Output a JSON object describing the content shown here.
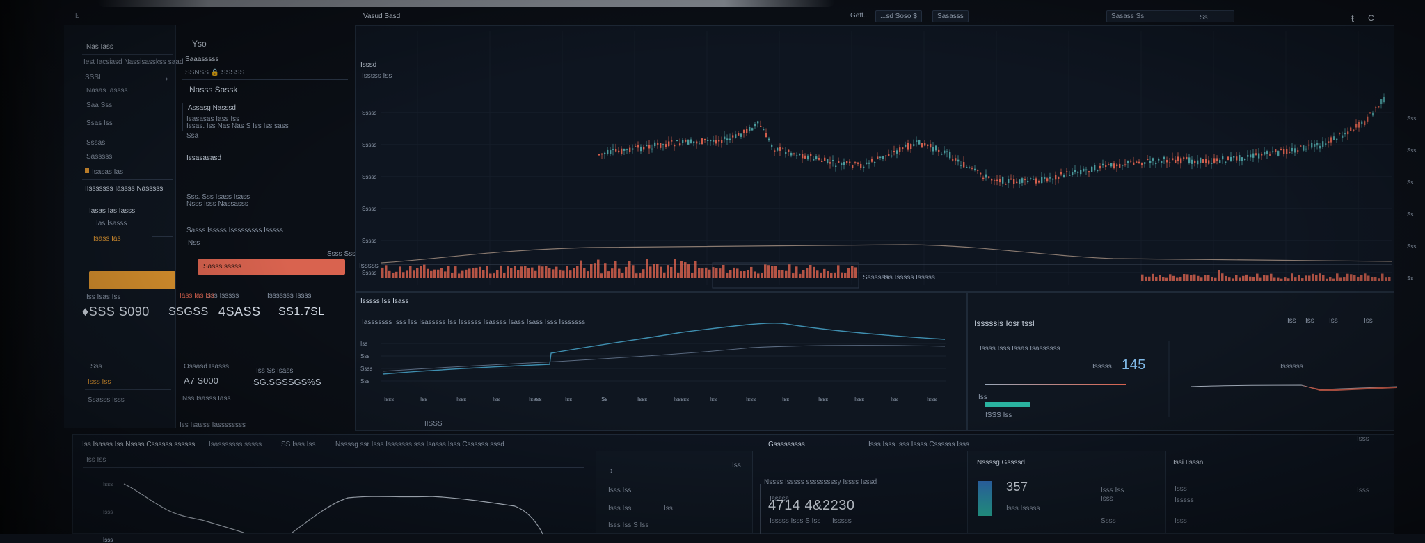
{
  "topbar": {
    "app_label": "Ŀ",
    "center_title": "Vasud Sasd",
    "menu_1": "Geff...",
    "menu_2": "...sd Soso $",
    "menu_3": "Sasasss",
    "right_field": "Sasass Ss",
    "right_count": "Ss",
    "right_icon_1": "ŧ",
    "right_icon_2": "C"
  },
  "left_nav": {
    "heading": "Nas Iass",
    "items": [
      "Iest Iacsiasd Nassisasskss saad",
      "SSSI",
      "Nasas Iassss",
      "Saa Sss",
      "Ssas Iss",
      "Sssas",
      "Sasssss",
      "Isasas Ias",
      "IIsssssss Iassss Nasssss"
    ],
    "sub_heading": "Iasas Ias Iasss",
    "sub_items": [
      "Ias Isasss",
      "Isass Ias"
    ]
  },
  "left_detail": {
    "label_top": "Yso",
    "section_1": "Saaasssss",
    "price_row": "SSNSS 🔒 SSSSS",
    "section_2": "Nasss Sassk",
    "section_3": "Assasg Nasssd",
    "desc_1": "Isasasas Iass Iss",
    "desc_2": "Issas. Iss Nas Nas S Iss Iss sass",
    "desc_3": "Ssa",
    "section_4": "Issasasasd",
    "desc_4": "Sss. Sss Isass Isass",
    "desc_5": "Nsss Isss Nassasss",
    "desc_6": "Sasss Isssss Isssssssss Isssss",
    "desc_7": "Nss",
    "sell_label": "Ssss Ssssss Sssss",
    "buy_button": "Sasss sssss",
    "buy_label": "Sss Isssss"
  },
  "stats_row": {
    "label_1": "Iss Isas Iss",
    "label_2": "Iass Ias Iss",
    "label_3": "Isssssss Issss",
    "value_1": "♦SSS S090",
    "value_2": "SSGSS",
    "value_3": "4SASS",
    "value_4": "SS1.7SL",
    "val_sub_1": "Sss",
    "val_sub_2": "Isss Iss",
    "val_sub_3": "Ssasss Isss",
    "val_sub_4": "Ossasd Isasss",
    "value_5": "A7 S000",
    "value_6": "SG.SGSSGS%S",
    "small_1": "Iss Ss Isass",
    "small_2": "Nss Isasss Iass",
    "footer_note": "Iss Isasss Iassssssss"
  },
  "main_chart": {
    "title": "Isssd",
    "subtitle": "Isssss Iss",
    "y_ticks": [
      "Sssss",
      "Sssss",
      "Sssss",
      "Sssss",
      "Sssss",
      "Sssss"
    ],
    "right_ticks": [
      "Sss",
      "Sss",
      "Ss",
      "Ss",
      "Sss",
      "Ss"
    ],
    "volume_label": "Isssss",
    "volume_value": "Sssssss",
    "volume_right": "Iss Isssss Isssss"
  },
  "lower_chart": {
    "title": "Isssss Iss Isass",
    "legend": "Iasssssss Isss Iss Isasssss Iss Issssss Isassss Isass Isass Isss Isssssss",
    "y_ticks": [
      "Iss",
      "Sss",
      "Ssss",
      "Sss"
    ],
    "x_ticks": [
      "Isss",
      "Iss",
      "Isss",
      "Iss",
      "Isass",
      "Iss",
      "Ss",
      "Isss",
      "Isssss",
      "Iss",
      "Isss",
      "Iss",
      "Isss",
      "Isss",
      "Iss",
      "Isss"
    ],
    "footer": "IISSS"
  },
  "right_panel": {
    "title": "Isssssis Iosr tssl",
    "subtitle": "Issss Isss Issas Isassssss",
    "metric_label": "Isssss",
    "metric_value": "145",
    "tick": "Iss",
    "bar_label": "ISSS Iss",
    "chart_title": "Issssss",
    "small_icons": [
      "Iss",
      "Iss",
      "Iss",
      "Iss"
    ]
  },
  "bottom_tabs": {
    "tab_1": "Iss Isasss Iss Nssss Cssssss ssssss",
    "tab_2": "Isasssssss sssss",
    "tab_3": "SS Isss Iss",
    "tab_4": "Nssssg ssr Isss Isssssss sss Isasss Isss Cssssss sssd"
  },
  "bottom_left_chart": {
    "label": "Iss Iss",
    "y_ticks": [
      "Isss",
      "Isss",
      "Isss"
    ]
  },
  "bottom_mid": {
    "marker": "↕",
    "label_1": "Isss Iss",
    "label_2": "Isss Iss",
    "label_3": "Iss",
    "label_4": "Isss Iss S Iss",
    "right_tick": "Iss"
  },
  "bottom_center": {
    "title": "Gsssssssss",
    "right_meta": "Isss Isss Isss Issss Cssssss Isss",
    "desc": "Nssss Isssss sssssssssy Issss Isssd",
    "big_label": "Isssss",
    "big_value": "4714 4&2230",
    "sub_1": "Isssss Isss S Iss",
    "sub_2": "Isssss"
  },
  "bottom_right": {
    "title": "Nssssg Gssssd",
    "value": "357",
    "sub": "Isss Isssss",
    "side_title": "Issi Ilsssn",
    "side_items": [
      "Isss",
      "Isssss",
      "Isss"
    ],
    "right_items": [
      "Isss Iss",
      "Isss",
      "Ssss",
      "Isss",
      "Isss"
    ]
  },
  "colors": {
    "background": "#0b0f16",
    "panel": "#121a25",
    "up_candle": "#4fa3a5",
    "down_candle": "#e0644f",
    "accent_orange": "#e59a33",
    "accent_red": "#d9634f",
    "line_blue": "#3f8fb0",
    "gauge_green": "#2ab3a0"
  }
}
